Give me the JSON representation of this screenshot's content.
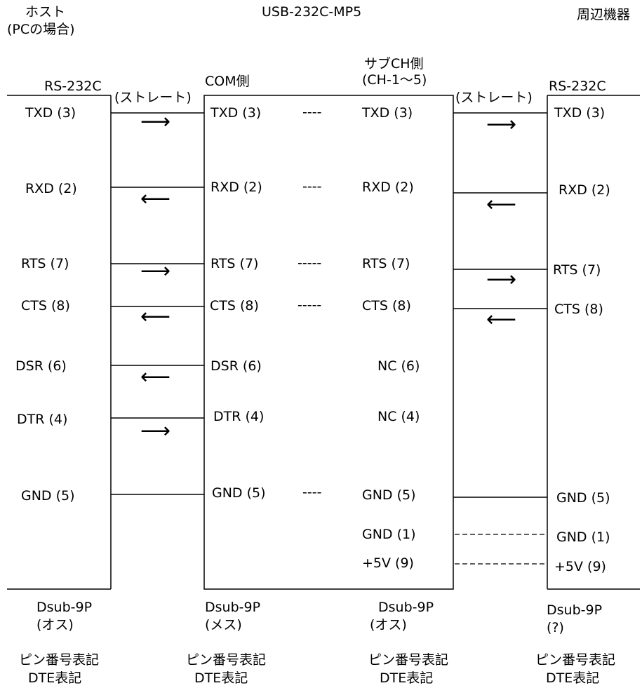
{
  "header": {
    "host_title": "ホスト",
    "host_sub": "(PCの場合)",
    "device_title": "USB-232C-MP5",
    "peripheral_title": "周辺機器"
  },
  "labels": {
    "rs232c_left": "RS-232C",
    "straight_left": "(ストレート)",
    "com_side": "COM側",
    "sub_ch_side": "サブCH側",
    "sub_ch_range": "(CH-1〜5)",
    "straight_right": "(ストレート)",
    "rs232c_right": "RS-232C"
  },
  "host_pins": [
    "TXD (3)",
    "RXD (2)",
    "RTS (7)",
    "CTS (8)",
    "DSR (6)",
    "DTR (4)",
    "GND (5)"
  ],
  "com_pins": [
    "TXD (3)",
    "RXD (2)",
    "RTS (7)",
    "CTS (8)",
    "DSR (6)",
    "DTR (4)",
    "GND (5)"
  ],
  "subch_pins": [
    "TXD (3)",
    "RXD (2)",
    "RTS (7)",
    "CTS (8)",
    "NC (6)",
    "NC (4)",
    "GND (5)",
    "GND (1)",
    "+5V (9)"
  ],
  "peripheral_pins": [
    "TXD (3)",
    "RXD (2)",
    "RTS (7)",
    "CTS (8)",
    "GND (5)",
    "GND (1)",
    "+5V (9)"
  ],
  "dashes": {
    "short": "----",
    "long": "-----"
  },
  "footer": {
    "host_connector": "Dsub-9P",
    "host_gender": "(オス)",
    "com_connector": "Dsub-9P",
    "com_gender": "(メス)",
    "subch_connector": "Dsub-9P",
    "subch_gender": "(オス)",
    "peripheral_connector": "Dsub-9P",
    "peripheral_gender": "(?)",
    "pin_notation": "ピン番号表記",
    "dte_notation": "DTE表記"
  },
  "arrows": {
    "right": "⟶",
    "left": "⟵"
  }
}
